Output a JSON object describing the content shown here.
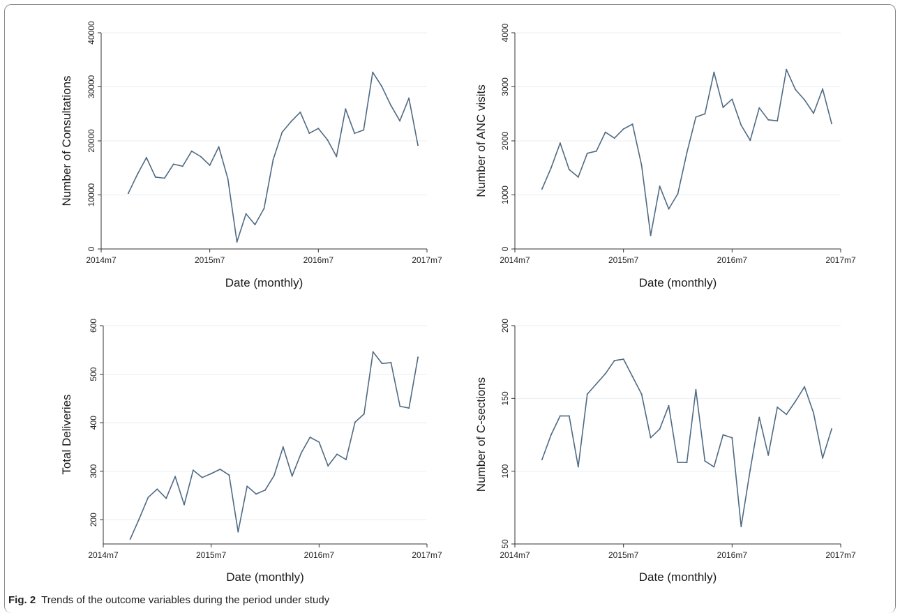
{
  "caption": {
    "label": "Fig. 2",
    "text": "Trends of the outcome variables during the period under study"
  },
  "chart_data": [
    {
      "type": "line",
      "xlabel": "Date (monthly)",
      "ylabel": "Number of Consultations",
      "x_ticks": [
        "2014m7",
        "2015m7",
        "2016m7",
        "2017m7"
      ],
      "y_ticks": [
        0,
        10000,
        20000,
        30000,
        40000
      ],
      "xlim": [
        "2014-07",
        "2017-07"
      ],
      "ylim": [
        0,
        40000
      ],
      "grid": true,
      "x": [
        "2014-10",
        "2014-11",
        "2014-12",
        "2015-01",
        "2015-02",
        "2015-03",
        "2015-04",
        "2015-05",
        "2015-06",
        "2015-07",
        "2015-08",
        "2015-09",
        "2015-10",
        "2015-11",
        "2015-12",
        "2016-01",
        "2016-02",
        "2016-03",
        "2016-04",
        "2016-05",
        "2016-06",
        "2016-07",
        "2016-08",
        "2016-09",
        "2016-10",
        "2016-11",
        "2016-12",
        "2017-01",
        "2017-02",
        "2017-03",
        "2017-04",
        "2017-05",
        "2017-06"
      ],
      "values": [
        10300,
        13800,
        16900,
        13300,
        13100,
        15700,
        15300,
        18100,
        17100,
        15500,
        18900,
        13000,
        1300,
        6500,
        4500,
        7500,
        16500,
        21600,
        23600,
        25300,
        21400,
        22300,
        20200,
        17100,
        25900,
        21400,
        22000,
        32700,
        30100,
        26600,
        23700,
        27900,
        19200
      ]
    },
    {
      "type": "line",
      "xlabel": "Date (monthly)",
      "ylabel": "Number of ANC visits",
      "x_ticks": [
        "2014m7",
        "2015m7",
        "2016m7",
        "2017m7"
      ],
      "y_ticks": [
        0,
        1000,
        2000,
        3000,
        4000
      ],
      "xlim": [
        "2014-07",
        "2017-07"
      ],
      "ylim": [
        0,
        4000
      ],
      "grid": true,
      "x": [
        "2014-10",
        "2014-11",
        "2014-12",
        "2015-01",
        "2015-02",
        "2015-03",
        "2015-04",
        "2015-05",
        "2015-06",
        "2015-07",
        "2015-08",
        "2015-09",
        "2015-10",
        "2015-11",
        "2015-12",
        "2016-01",
        "2016-02",
        "2016-03",
        "2016-04",
        "2016-05",
        "2016-06",
        "2016-07",
        "2016-08",
        "2016-09",
        "2016-10",
        "2016-11",
        "2016-12",
        "2017-01",
        "2017-02",
        "2017-03",
        "2017-04",
        "2017-05",
        "2017-06"
      ],
      "values": [
        1110,
        1500,
        1960,
        1470,
        1330,
        1770,
        1810,
        2160,
        2050,
        2220,
        2310,
        1550,
        250,
        1160,
        740,
        1020,
        1780,
        2440,
        2500,
        3270,
        2620,
        2770,
        2290,
        2010,
        2610,
        2390,
        2370,
        3320,
        2950,
        2760,
        2510,
        2960,
        2320
      ]
    },
    {
      "type": "line",
      "xlabel": "Date (monthly)",
      "ylabel": "Total Deliveries",
      "x_ticks": [
        "2014m7",
        "2015m7",
        "2016m7",
        "2017m7"
      ],
      "y_ticks": [
        200,
        300,
        400,
        500,
        600
      ],
      "xlim": [
        "2014-07",
        "2017-07"
      ],
      "ylim": [
        150,
        600
      ],
      "grid": true,
      "x": [
        "2014-10",
        "2014-11",
        "2014-12",
        "2015-01",
        "2015-02",
        "2015-03",
        "2015-04",
        "2015-05",
        "2015-06",
        "2015-07",
        "2015-08",
        "2015-09",
        "2015-10",
        "2015-11",
        "2015-12",
        "2016-01",
        "2016-02",
        "2016-03",
        "2016-04",
        "2016-05",
        "2016-06",
        "2016-07",
        "2016-08",
        "2016-09",
        "2016-10",
        "2016-11",
        "2016-12",
        "2017-01",
        "2017-02",
        "2017-03",
        "2017-04",
        "2017-05",
        "2017-06"
      ],
      "values": [
        160,
        202,
        246,
        263,
        244,
        289,
        231,
        302,
        287,
        295,
        304,
        292,
        175,
        269,
        253,
        261,
        291,
        350,
        290,
        337,
        370,
        360,
        311,
        335,
        324,
        401,
        418,
        546,
        522,
        524,
        434,
        430,
        535
      ]
    },
    {
      "type": "line",
      "xlabel": "Date (monthly)",
      "ylabel": "Number of C-sections",
      "x_ticks": [
        "2014m7",
        "2015m7",
        "2016m7",
        "2017m7"
      ],
      "y_ticks": [
        50,
        100,
        150,
        200
      ],
      "xlim": [
        "2014-07",
        "2017-07"
      ],
      "ylim": [
        50,
        200
      ],
      "grid": true,
      "x": [
        "2014-10",
        "2014-11",
        "2014-12",
        "2015-01",
        "2015-02",
        "2015-03",
        "2015-04",
        "2015-05",
        "2015-06",
        "2015-07",
        "2015-08",
        "2015-09",
        "2015-10",
        "2015-11",
        "2015-12",
        "2016-01",
        "2016-02",
        "2016-03",
        "2016-04",
        "2016-05",
        "2016-06",
        "2016-07",
        "2016-08",
        "2016-09",
        "2016-10",
        "2016-11",
        "2016-12",
        "2017-01",
        "2017-02",
        "2017-03",
        "2017-04",
        "2017-05",
        "2017-06"
      ],
      "values": [
        108,
        125,
        138,
        138,
        103,
        153,
        160,
        167,
        176,
        177,
        165,
        153,
        123,
        129,
        145,
        106,
        106,
        156,
        107,
        103,
        125,
        123,
        62,
        101,
        137,
        111,
        144,
        139,
        148,
        158,
        140,
        109,
        129
      ]
    }
  ]
}
